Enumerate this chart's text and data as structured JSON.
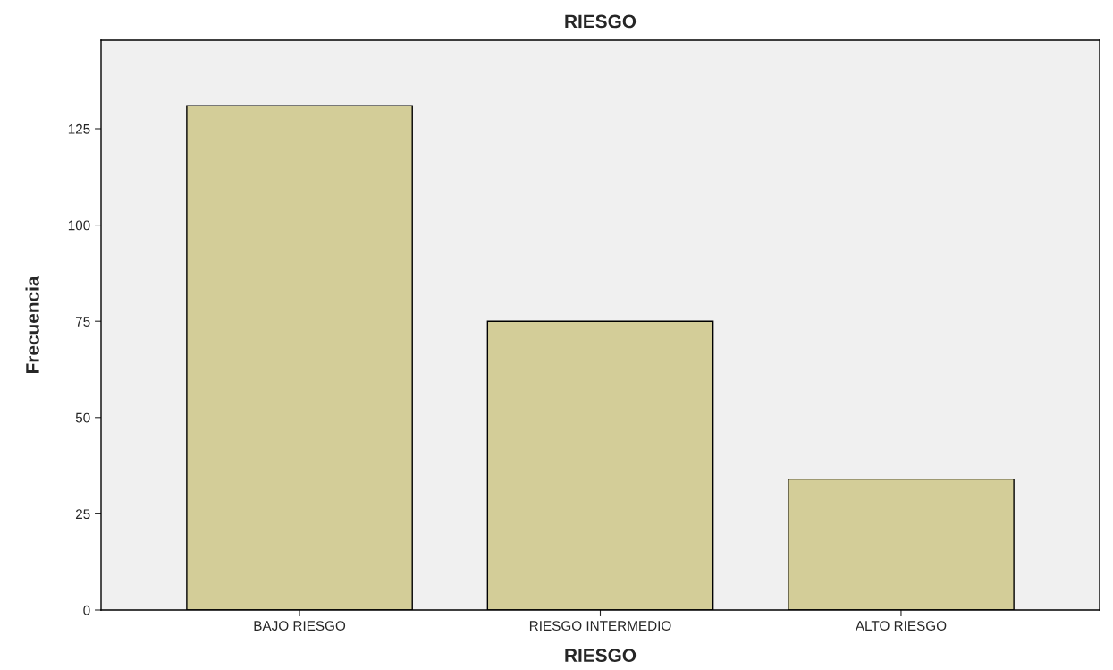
{
  "chart_data": {
    "type": "bar",
    "title": "RIESGO",
    "xlabel": "RIESGO",
    "ylabel": "Frecuencia",
    "categories": [
      "BAJO RIESGO",
      "RIESGO INTERMEDIO",
      "ALTO RIESGO"
    ],
    "values": [
      131,
      75,
      34
    ],
    "color": "#d3cd98",
    "ylim": [
      0,
      148
    ],
    "yticks": [
      0,
      25,
      50,
      75,
      100,
      125
    ],
    "grid": false,
    "legend": false
  }
}
